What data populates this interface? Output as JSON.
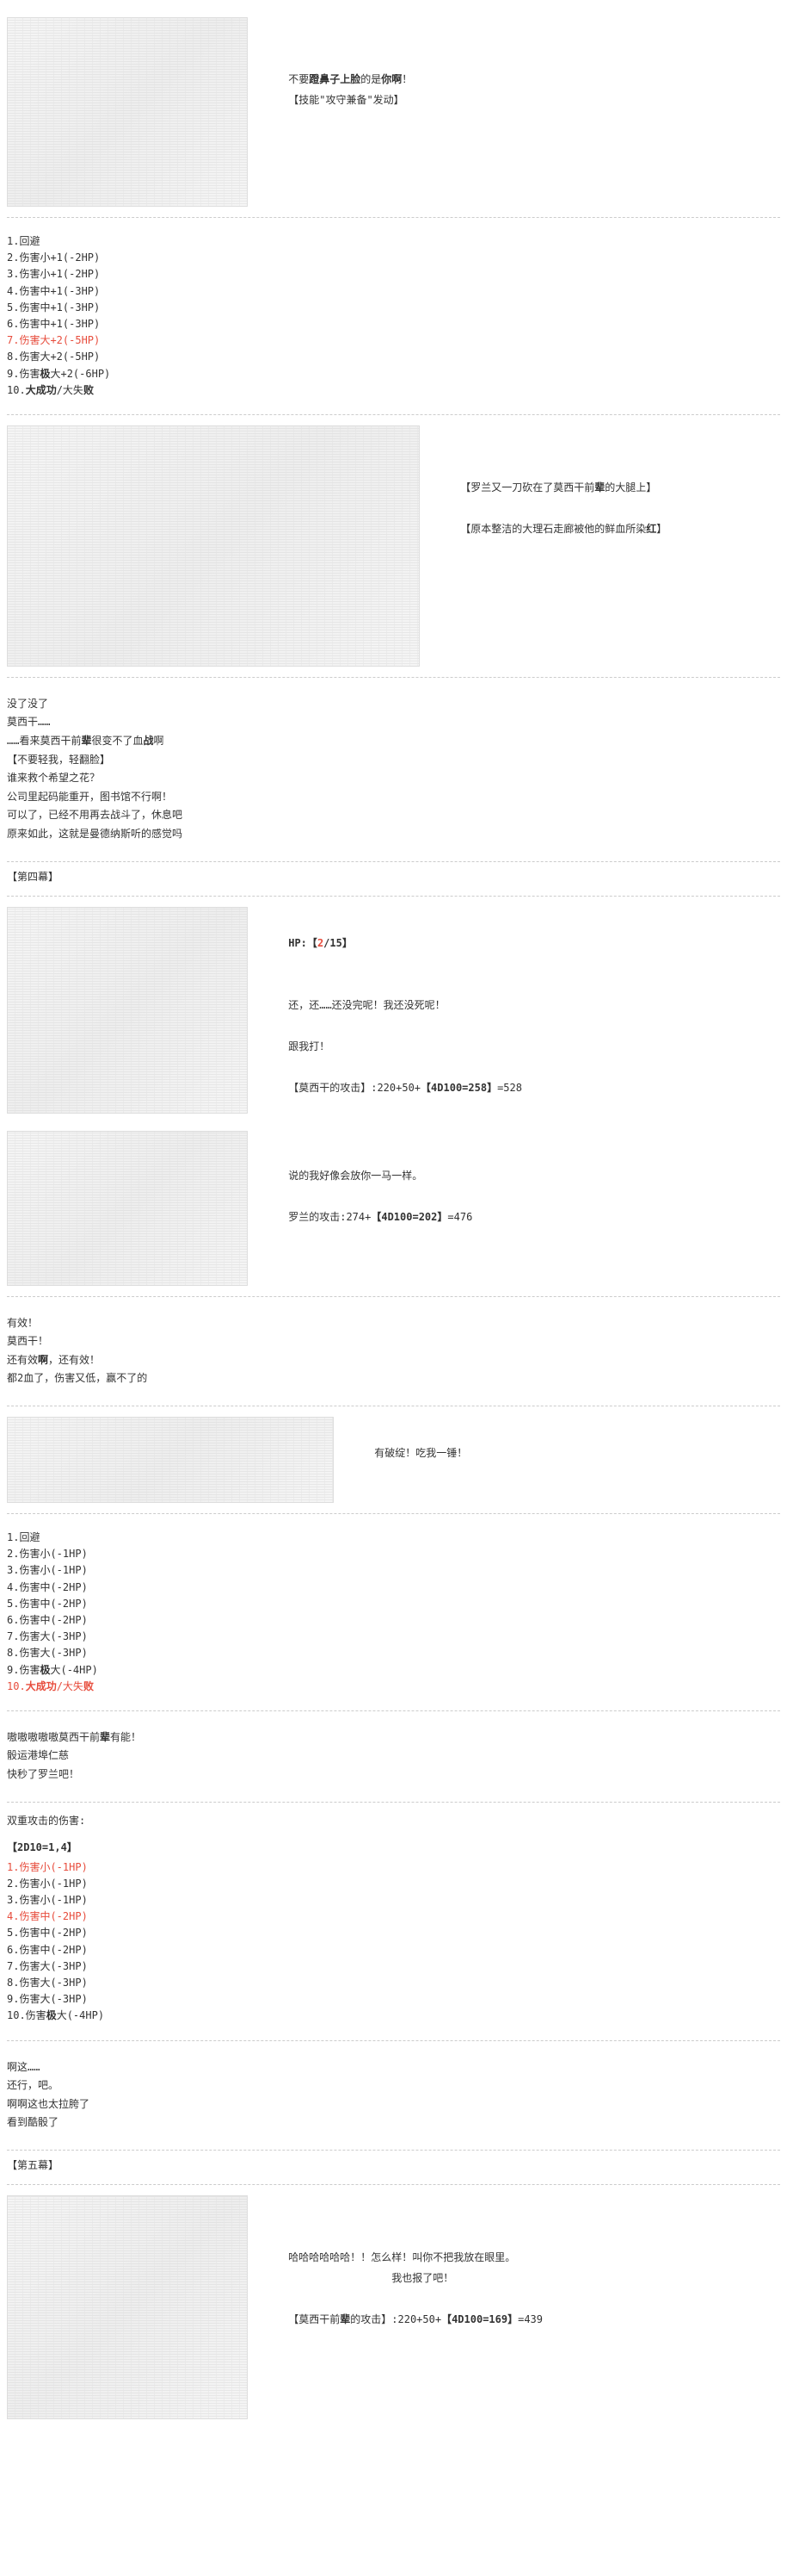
{
  "section1": {
    "line1_pre": "不要",
    "line1_bold": "蹬鼻子上脸",
    "line1_mid": "的是",
    "line1_bold2": "你啊",
    "line1_post": "！",
    "line2": "【技能\"攻守兼备\"发动】"
  },
  "rolls1": {
    "title": "",
    "items": [
      {
        "n": "1.回避",
        "cls": ""
      },
      {
        "n": "2.伤害小+1(-2HP)",
        "cls": ""
      },
      {
        "n": "3.伤害小+1(-2HP)",
        "cls": ""
      },
      {
        "n": "4.伤害中+1(-3HP)",
        "cls": ""
      },
      {
        "n": "5.伤害中+1(-3HP)",
        "cls": ""
      },
      {
        "n": "6.伤害中+1(-3HP)",
        "cls": ""
      },
      {
        "n": "7.伤害大+2(-5HP)",
        "cls": "red"
      },
      {
        "n": "8.伤害大+2(-5HP)",
        "cls": ""
      },
      {
        "n": "9.伤害极大+2(-6HP)",
        "cls": ""
      },
      {
        "n": "10.大成功/大失败",
        "cls": ""
      }
    ]
  },
  "section2": {
    "line1_pre": "【罗兰又一刀砍在了莫西干前",
    "line1_bold": "辈",
    "line1_post": "的大腿上】",
    "line2_pre": "【原本整洁的大理石走廊被他的鲜血所染",
    "line2_bold": "红",
    "line2_post": "】"
  },
  "dialog1": {
    "l1": "没了没了",
    "l2": "莫西干……",
    "l3_pre": "……看来莫西干前",
    "l3_b1": "辈",
    "l3_mid": "很变不了血",
    "l3_b2": "战",
    "l3_post": "啊",
    "l4": "【不要轻我，轻翻脸】",
    "l5": "谁来救个希望之花？",
    "l6": "公司里起码能重开，图书馆不行啊！",
    "l7": "可以了，已经不用再去战斗了，休息吧",
    "l8": "原来如此，这就是曼德纳斯听的感觉吗"
  },
  "act4": "【第四幕】",
  "section3": {
    "hp_label": "HP:",
    "hp_cur": "2",
    "hp_max": "/15",
    "line1": "还，还……还没完呢！我还没死呢！",
    "line2": "跟我打！",
    "line3_pre": "【莫西干的攻击】:220+50+",
    "line3_roll": "【4D100=258】",
    "line3_post": "=528"
  },
  "section3b": {
    "line1": "说的我好像会放你一马一样。",
    "line2_pre": "罗兰的攻击:274+",
    "line2_roll": "【4D100=202】",
    "line2_post": "=476"
  },
  "dialog2": {
    "l1": "有效！",
    "l2": "莫西干！",
    "l3_pre": "还有效",
    "l3_b": "啊",
    "l3_post": "，还有效！",
    "l4": "都2血了，伤害又低，赢不了的"
  },
  "section4": {
    "line1": "有破绽！吃我一锤！"
  },
  "rolls2": {
    "items": [
      {
        "n": "1.回避",
        "cls": ""
      },
      {
        "n": "2.伤害小(-1HP)",
        "cls": ""
      },
      {
        "n": "3.伤害小(-1HP)",
        "cls": ""
      },
      {
        "n": "4.伤害中(-2HP)",
        "cls": ""
      },
      {
        "n": "5.伤害中(-2HP)",
        "cls": ""
      },
      {
        "n": "6.伤害中(-2HP)",
        "cls": ""
      },
      {
        "n": "7.伤害大(-3HP)",
        "cls": ""
      },
      {
        "n": "8.伤害大(-3HP)",
        "cls": ""
      },
      {
        "n": "9.伤害极大(-4HP)",
        "cls": ""
      },
      {
        "n": "10.大成功/大失败",
        "cls": "red"
      }
    ]
  },
  "dialog3": {
    "l1_pre": "嗷嗷嗷嗷嗷莫西干前",
    "l1_b": "辈",
    "l1_post": "有能！",
    "l2": "骰运港埠仁慈",
    "l3": "快秒了罗兰吧！"
  },
  "dmg_title": "双重攻击的伤害:",
  "dmg_roll": "【2D10=1,4】",
  "rolls3": {
    "items": [
      {
        "n": "1.伤害小(-1HP)",
        "cls": "red"
      },
      {
        "n": "2.伤害小(-1HP)",
        "cls": ""
      },
      {
        "n": "3.伤害小(-1HP)",
        "cls": ""
      },
      {
        "n": "4.伤害中(-2HP)",
        "cls": "red"
      },
      {
        "n": "5.伤害中(-2HP)",
        "cls": ""
      },
      {
        "n": "6.伤害中(-2HP)",
        "cls": ""
      },
      {
        "n": "7.伤害大(-3HP)",
        "cls": ""
      },
      {
        "n": "8.伤害大(-3HP)",
        "cls": ""
      },
      {
        "n": "9.伤害大(-3HP)",
        "cls": ""
      },
      {
        "n": "10.伤害极大(-4HP)",
        "cls": ""
      }
    ]
  },
  "dialog4": {
    "l1": "啊这……",
    "l2": "还行，吧。",
    "l3": "啊啊这也太拉胯了",
    "l4": "看到酷骰了"
  },
  "act5": "【第五幕】",
  "section5": {
    "line1": "哈哈哈哈哈哈！！怎么样！叫你不把我放在眼里。",
    "line2": "我也报了吧！",
    "line3_pre": "【莫西干前",
    "line3_b": "辈",
    "line3_mid": "的攻击】:220+50+",
    "line3_roll": "【4D100=169】",
    "line3_post": "=439"
  }
}
